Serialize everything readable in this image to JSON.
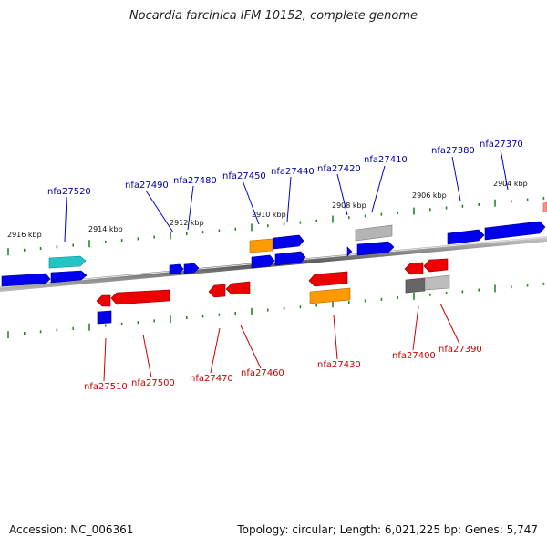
{
  "title": "Nocardia farcinica IFM 10152, complete genome",
  "footer": {
    "accession": "Accession: NC_006361",
    "stats": "Topology: circular; Length: 6,021,225 bp; Genes: 5,747"
  },
  "colors": {
    "forward": "#0000ee",
    "reverse": "#ee0000",
    "cyan": "#22c4c4",
    "orange": "#ff9900",
    "gray": "#aaaaaa",
    "darkgray": "#666666",
    "tick": "#228b22",
    "label_top": "#0000aa",
    "label_bottom": "#cc0000"
  },
  "scale_labels": [
    "2916 kbp",
    "2914 kbp",
    "2912 kbp",
    "2910 kbp",
    "2908 kbp",
    "2906 kbp",
    "2904 kbp"
  ],
  "genes_top": [
    {
      "name": "nfa27520"
    },
    {
      "name": "nfa27490"
    },
    {
      "name": "nfa27480"
    },
    {
      "name": "nfa27450"
    },
    {
      "name": "nfa27440"
    },
    {
      "name": "nfa27420"
    },
    {
      "name": "nfa27410"
    },
    {
      "name": "nfa27380"
    },
    {
      "name": "nfa27370"
    }
  ],
  "genes_bottom": [
    {
      "name": "nfa27510"
    },
    {
      "name": "nfa27500"
    },
    {
      "name": "nfa27470"
    },
    {
      "name": "nfa27460"
    },
    {
      "name": "nfa27430"
    },
    {
      "name": "nfa27400"
    },
    {
      "name": "nfa27390"
    }
  ]
}
